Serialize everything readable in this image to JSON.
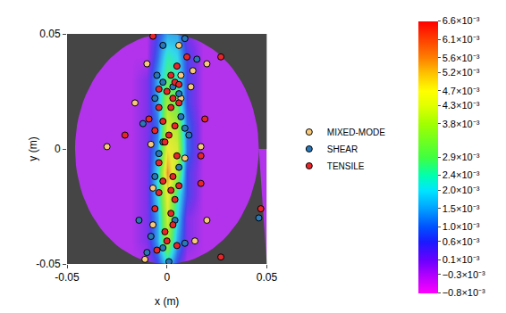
{
  "chart_data": {
    "type": "scatter",
    "xlabel": "x (m)",
    "ylabel": "y (m)",
    "xlim": [
      -0.05,
      0.05
    ],
    "ylim": [
      -0.05,
      0.05
    ],
    "xticks": [
      -0.05,
      0,
      0.05
    ],
    "yticks": [
      -0.05,
      0,
      0.05
    ],
    "grid": false,
    "legend": "right",
    "series": [
      {
        "name": "MIXED-MODE",
        "color": "#f8c97a",
        "marker": "circle",
        "x": [
          0.006,
          0.02,
          -0.01,
          0.013,
          0.007,
          0.012,
          0.007,
          -0.016,
          -0.03,
          -0.008,
          0.017,
          0.009,
          -0.007,
          -0.007,
          0.02,
          0.014,
          -0.011
        ],
        "y": [
          0.045,
          0.037,
          0.037,
          0.034,
          0.032,
          0.027,
          0.022,
          0.02,
          0.001,
          0.002,
          0.001,
          -0.004,
          -0.017,
          -0.033,
          -0.031,
          -0.04,
          -0.048
        ]
      },
      {
        "name": "SHEAR",
        "color": "#2a78b8",
        "marker": "circle",
        "x": [
          0.009,
          -0.002,
          0.015,
          -0.005,
          -0.002,
          0.003,
          0.006,
          -0.006,
          0.007,
          -0.012,
          0.009,
          -0.002,
          -0.004,
          0.006,
          -0.006,
          -0.014,
          0.004,
          -0.008,
          -0.002,
          0.009,
          -0.01,
          0.001,
          0.046,
          0.011
        ],
        "y": [
          0.048,
          0.045,
          0.039,
          0.032,
          0.029,
          0.027,
          0.024,
          0.022,
          0.014,
          0.011,
          0.009,
          0.003,
          -0.002,
          -0.008,
          -0.012,
          -0.031,
          -0.031,
          -0.038,
          -0.043,
          -0.041,
          -0.045,
          -0.049,
          -0.03,
          0.006
        ]
      },
      {
        "name": "TENSILE",
        "color": "#e8262a",
        "marker": "circle",
        "x": [
          -0.007,
          0.027,
          0.01,
          0.005,
          0.002,
          0.004,
          0.006,
          -0.004,
          0.0,
          0.003,
          0.006,
          0.002,
          -0.004,
          -0.009,
          -0.002,
          0.004,
          -0.006,
          0.001,
          0.019,
          -0.021,
          0.017,
          0.005,
          -0.004,
          -0.002,
          0.006,
          0.002,
          -0.004,
          0.004,
          0.017,
          -0.006,
          0.002,
          0.003,
          -0.001,
          0.0,
          0.005,
          -0.005,
          0.047,
          0.027,
          0.003,
          -0.001
        ],
        "y": [
          0.049,
          0.04,
          0.04,
          0.036,
          0.032,
          0.029,
          0.028,
          0.026,
          0.025,
          0.022,
          0.02,
          0.018,
          0.018,
          0.013,
          0.012,
          0.01,
          0.008,
          0.006,
          0.013,
          0.006,
          -0.003,
          -0.003,
          -0.006,
          -0.014,
          -0.016,
          -0.018,
          -0.019,
          -0.022,
          -0.015,
          -0.026,
          -0.028,
          -0.033,
          -0.036,
          -0.04,
          -0.042,
          -0.044,
          -0.026,
          -0.047,
          -0.012,
          0.003
        ]
      }
    ],
    "strain_field": {
      "x": [
        -0.045,
        -0.03,
        -0.018,
        -0.01,
        -0.005,
        0,
        0.005,
        0.01,
        0.018,
        0.03,
        0.045
      ],
      "y": [
        -0.05,
        -0.04,
        -0.03,
        -0.02,
        -0.01,
        0,
        0.01,
        0.02,
        0.03,
        0.04,
        0.05
      ],
      "z": [
        [
          -0.0003,
          -0.0003,
          -0.0003,
          -0.0003,
          0.0006,
          0.002,
          0.0006,
          -0.0003,
          -0.0003,
          -0.0003,
          -0.0003
        ],
        [
          -0.0003,
          -0.0003,
          -0.0003,
          0.0001,
          0.0015,
          0.0038,
          0.0015,
          0.0001,
          -0.0003,
          -0.0003,
          -0.0003
        ],
        [
          -0.0003,
          -0.0003,
          -0.0003,
          0.0001,
          0.0015,
          0.0043,
          0.002,
          0.0001,
          -0.0003,
          -0.0003,
          -0.0003
        ],
        [
          -0.0003,
          -0.0003,
          -0.0003,
          0.0001,
          0.002,
          0.0047,
          0.0024,
          0.0006,
          -0.0003,
          -0.0003,
          -0.0003
        ],
        [
          -0.0003,
          -0.0003,
          -0.0003,
          0.0001,
          0.002,
          0.0056,
          0.0038,
          0.0006,
          -0.0003,
          -0.0003,
          -0.0003
        ],
        [
          -0.0003,
          -0.0003,
          -0.0003,
          0.0001,
          0.0015,
          0.0047,
          0.0043,
          0.001,
          -0.0003,
          -0.0003,
          -0.0003
        ],
        [
          -0.0003,
          -0.0003,
          -0.0003,
          0.0001,
          0.001,
          0.0043,
          0.0038,
          0.001,
          -0.0003,
          -0.0003,
          -0.0003
        ],
        [
          -0.0003,
          -0.0003,
          -0.0003,
          0.0001,
          0.0015,
          0.0038,
          0.0029,
          0.0006,
          -0.0003,
          -0.0003,
          -0.0003
        ],
        [
          -0.0003,
          -0.0003,
          -0.0003,
          0.0001,
          0.0015,
          0.0029,
          0.0024,
          0.0006,
          -0.0003,
          -0.0003,
          -0.0003
        ],
        [
          -0.0003,
          -0.0003,
          -0.0003,
          -0.0003,
          0.001,
          0.0024,
          0.002,
          0.0006,
          -0.0003,
          -0.0003,
          -0.0003
        ],
        [
          -0.0003,
          -0.0003,
          -0.0003,
          -0.0003,
          0.0006,
          0.0015,
          0.0015,
          0.0001,
          -0.0003,
          -0.0003,
          -0.0003
        ]
      ],
      "zlim": [
        -0.0008,
        0.0066
      ],
      "zticks": [
        {
          "value": 0.0066,
          "label": "6.6×10⁻³"
        },
        {
          "value": 0.0061,
          "label": "6.1×10⁻³"
        },
        {
          "value": 0.0056,
          "label": "5.6×10⁻³"
        },
        {
          "value": 0.0052,
          "label": "5.2×10⁻³"
        },
        {
          "value": 0.0047,
          "label": "4.7×10⁻³"
        },
        {
          "value": 0.0043,
          "label": "4.3×10⁻³"
        },
        {
          "value": 0.0038,
          "label": "3.8×10⁻³"
        },
        {
          "value": 0.0029,
          "label": "2.9×10⁻³"
        },
        {
          "value": 0.0024,
          "label": "2.4×10⁻³"
        },
        {
          "value": 0.002,
          "label": "2.0×10⁻³"
        },
        {
          "value": 0.0015,
          "label": "1.5×10⁻³"
        },
        {
          "value": 0.001,
          "label": "1.0×10⁻³"
        },
        {
          "value": 0.0006,
          "label": "0.6×10⁻³"
        },
        {
          "value": 0.0001,
          "label": "0.1×10⁻³"
        },
        {
          "value": -0.0003,
          "label": "−0.3×10⁻³"
        },
        {
          "value": -0.0008,
          "label": "−0.8×10⁻³"
        }
      ]
    }
  }
}
